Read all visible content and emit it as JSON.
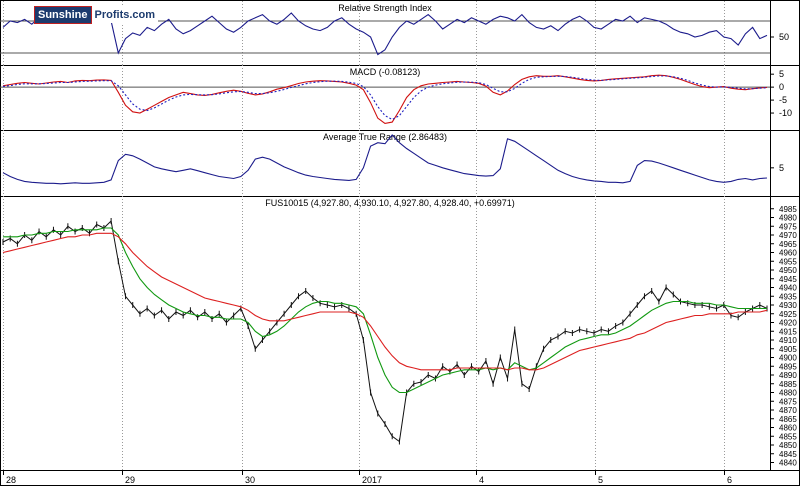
{
  "logo": {
    "left": "Sunshine",
    "right": "Profits.com"
  },
  "chart_data": [
    {
      "type": "line",
      "title": "Relative Strength Index",
      "y_ticks": [
        "50"
      ],
      "ylim": [
        20,
        90
      ],
      "reference_lines": [
        70,
        30
      ],
      "series": [
        {
          "color": "#1c1c8c",
          "values": [
            62,
            70,
            68,
            72,
            66,
            74,
            78,
            70,
            75,
            72,
            80,
            74,
            70,
            76,
            82,
            70,
            30,
            48,
            55,
            52,
            62,
            58,
            66,
            72,
            60,
            54,
            58,
            64,
            70,
            76,
            68,
            60,
            56,
            62,
            70,
            74,
            78,
            70,
            66,
            72,
            80,
            70,
            64,
            60,
            58,
            62,
            70,
            74,
            66,
            60,
            56,
            50,
            28,
            34,
            50,
            62,
            70,
            66,
            72,
            78,
            70,
            60,
            66,
            72,
            68,
            74,
            70,
            66,
            72,
            76,
            74,
            70,
            78,
            68,
            62,
            60,
            64,
            58,
            66,
            72,
            76,
            70,
            62,
            60,
            66,
            72,
            70,
            76,
            68,
            74,
            72,
            70,
            66,
            60,
            56,
            54,
            50,
            52,
            56,
            58,
            50,
            48,
            40,
            54,
            62,
            48,
            52
          ]
        }
      ]
    },
    {
      "type": "line",
      "title": "MACD (-0.08123)",
      "y_ticks": [
        "5",
        "0",
        "-5",
        "-10"
      ],
      "ylim": [
        -15,
        7
      ],
      "series": [
        {
          "color": "#d01010",
          "values": [
            0.5,
            1,
            1.5,
            1.8,
            1.5,
            1.2,
            1.6,
            2,
            2.2,
            1.8,
            2.4,
            2.6,
            2.5,
            2.7,
            2.8,
            2.6,
            -2,
            -7,
            -9.5,
            -10,
            -8.5,
            -7,
            -5.5,
            -4,
            -3,
            -2,
            -2.5,
            -3,
            -3.2,
            -2.8,
            -2.2,
            -1.6,
            -1.2,
            -1.6,
            -2.4,
            -3,
            -2.6,
            -1.8,
            -0.8,
            -0.2,
            0.6,
            1.4,
            2,
            2.3,
            2.5,
            2.4,
            2.2,
            2,
            1.5,
            0.8,
            -1,
            -6,
            -12,
            -14,
            -13.5,
            -9,
            -4,
            -1,
            0.5,
            1.2,
            1.5,
            1.8,
            2,
            2.2,
            2,
            1.8,
            1.5,
            0.4,
            -2,
            -3,
            -1.5,
            1,
            3,
            4,
            4.4,
            4.2,
            4.2,
            4.4,
            4,
            3.5,
            3,
            2.6,
            2.4,
            2.6,
            3,
            3.2,
            3.4,
            3.6,
            3.8,
            4,
            4.4,
            4.6,
            4.4,
            3.8,
            3,
            2,
            1,
            0.2,
            -0.2,
            0,
            0.2,
            -0.4,
            -0.8,
            -1,
            -0.6,
            -0.3,
            -0.1
          ]
        },
        {
          "color": "#2020c0",
          "dashed": true,
          "values": [
            0.3,
            0.6,
            1,
            1.3,
            1.3,
            1.3,
            1.4,
            1.6,
            1.8,
            1.8,
            2,
            2.2,
            2.3,
            2.4,
            2.5,
            2.5,
            0.5,
            -3,
            -6.5,
            -8.5,
            -9,
            -8,
            -6.5,
            -5,
            -3.8,
            -3,
            -2.8,
            -2.9,
            -3,
            -2.9,
            -2.6,
            -2.2,
            -1.8,
            -1.7,
            -2,
            -2.5,
            -2.5,
            -2.2,
            -1.6,
            -0.9,
            -0.1,
            0.6,
            1.3,
            1.8,
            2.1,
            2.3,
            2.3,
            2.2,
            1.9,
            1.4,
            0.2,
            -3,
            -7.5,
            -11,
            -12.5,
            -11,
            -7.5,
            -4,
            -1.5,
            0,
            0.8,
            1.3,
            1.6,
            1.9,
            2,
            1.9,
            1.7,
            1,
            -0.5,
            -1.8,
            -1.8,
            -0.5,
            1.5,
            3,
            3.8,
            4,
            4.1,
            4.2,
            4.1,
            3.8,
            3.4,
            3,
            2.7,
            2.6,
            2.8,
            3,
            3.2,
            3.4,
            3.6,
            3.8,
            4.1,
            4.3,
            4.3,
            4,
            3.4,
            2.6,
            1.6,
            0.8,
            0.2,
            0,
            0.1,
            -0.1,
            -0.4,
            -0.7,
            -0.6,
            -0.4,
            -0.2
          ]
        }
      ]
    },
    {
      "type": "line",
      "title": "Average True Range (2.86483)",
      "y_ticks": [
        "5"
      ],
      "ylim": [
        0,
        12
      ],
      "series": [
        {
          "color": "#1c1c8c",
          "values": [
            4,
            3.2,
            2.6,
            2.2,
            2,
            1.9,
            1.8,
            1.8,
            1.7,
            1.8,
            1.9,
            1.8,
            1.8,
            1.9,
            2,
            2.5,
            6.5,
            7.8,
            7.5,
            6.8,
            6,
            5.2,
            4.8,
            4.5,
            4.2,
            4.5,
            4.8,
            4.4,
            4,
            3.6,
            3.2,
            3,
            2.8,
            3.2,
            4.5,
            6.8,
            7.2,
            6.8,
            6,
            5.2,
            4.6,
            4,
            3.5,
            3.2,
            3,
            2.8,
            2.6,
            2.5,
            2.4,
            2.6,
            5,
            9.5,
            10.2,
            10,
            11.8,
            10.2,
            9,
            8,
            7,
            6,
            5.5,
            5,
            4.6,
            4.2,
            3.8,
            3.6,
            3.4,
            3.3,
            3.4,
            4.8,
            11,
            10.5,
            9.5,
            8.5,
            7.5,
            6.5,
            5.5,
            4.5,
            3.8,
            3.2,
            2.8,
            2.5,
            2.3,
            2.2,
            2,
            2,
            1.9,
            2.2,
            5.5,
            6.5,
            6.4,
            6,
            5.5,
            5,
            4.5,
            4,
            3.5,
            3,
            2.5,
            2.2,
            2,
            2.2,
            2.6,
            2.8,
            2.5,
            2.8,
            2.9
          ]
        }
      ]
    },
    {
      "type": "line",
      "title": "FUS10015 (4,927.80, 4,930.10, 4,927.80, 4,928.40, +0.69971)",
      "ylim": [
        4838,
        4990
      ],
      "y_ticks": [
        "4985",
        "4980",
        "4975",
        "4970",
        "4965",
        "4960",
        "4955",
        "4950",
        "4945",
        "4940",
        "4935",
        "4930",
        "4925",
        "4920",
        "4915",
        "4910",
        "4905",
        "4900",
        "4895",
        "4890",
        "4885",
        "4880",
        "4875",
        "4870",
        "4865",
        "4860",
        "4855",
        "4850",
        "4845",
        "4840"
      ],
      "x_ticks": [
        "28",
        "29",
        "30",
        "2017",
        "4",
        "5",
        "6"
      ],
      "series": [
        {
          "color": "#111111",
          "values": [
            4966,
            4968,
            4965,
            4970,
            4967,
            4972,
            4969,
            4973,
            4970,
            4975,
            4972,
            4974,
            4971,
            4976,
            4974,
            4978,
            4955,
            4935,
            4930,
            4925,
            4928,
            4924,
            4927,
            4922,
            4926,
            4924,
            4927,
            4923,
            4926,
            4922,
            4925,
            4920,
            4924,
            4928,
            4918,
            4905,
            4910,
            4915,
            4920,
            4925,
            4930,
            4935,
            4938,
            4934,
            4931,
            4930,
            4929,
            4930,
            4928,
            4925,
            4910,
            4880,
            4868,
            4862,
            4855,
            4852,
            4880,
            4885,
            4886,
            4890,
            4888,
            4895,
            4892,
            4896,
            4890,
            4895,
            4892,
            4898,
            4885,
            4900,
            4888,
            4916,
            4885,
            4882,
            4895,
            4905,
            4910,
            4912,
            4915,
            4914,
            4916,
            4915,
            4914,
            4916,
            4915,
            4918,
            4920,
            4925,
            4930,
            4935,
            4938,
            4932,
            4940,
            4936,
            4932,
            4931,
            4930,
            4930,
            4929,
            4928,
            4930,
            4924,
            4923,
            4926,
            4928,
            4930,
            4928
          ]
        },
        {
          "color": "#119911",
          "values": [
            4969,
            4969,
            4969,
            4970,
            4970,
            4971,
            4971,
            4972,
            4972,
            4972,
            4973,
            4973,
            4973,
            4973,
            4974,
            4974,
            4970,
            4960,
            4952,
            4945,
            4940,
            4936,
            4933,
            4930,
            4928,
            4926,
            4925,
            4924,
            4924,
            4923,
            4923,
            4922,
            4922,
            4922,
            4920,
            4915,
            4912,
            4913,
            4915,
            4918,
            4922,
            4926,
            4929,
            4931,
            4932,
            4932,
            4931,
            4931,
            4930,
            4929,
            4925,
            4913,
            4900,
            4890,
            4883,
            4880,
            4880,
            4882,
            4884,
            4886,
            4888,
            4890,
            4891,
            4892,
            4893,
            4893,
            4893,
            4894,
            4893,
            4894,
            4893,
            4897,
            4895,
            4893,
            4894,
            4897,
            4900,
            4903,
            4906,
            4908,
            4910,
            4911,
            4912,
            4913,
            4913,
            4914,
            4916,
            4918,
            4921,
            4924,
            4927,
            4929,
            4931,
            4932,
            4932,
            4932,
            4931,
            4931,
            4931,
            4930,
            4930,
            4929,
            4928,
            4928,
            4928,
            4928,
            4928
          ]
        },
        {
          "color": "#dd2020",
          "values": [
            4960,
            4961,
            4962,
            4963,
            4964,
            4965,
            4966,
            4967,
            4968,
            4969,
            4969,
            4970,
            4970,
            4971,
            4971,
            4971,
            4969,
            4965,
            4960,
            4956,
            4952,
            4949,
            4946,
            4944,
            4942,
            4940,
            4938,
            4936,
            4934,
            4933,
            4932,
            4931,
            4930,
            4929,
            4927,
            4924,
            4922,
            4921,
            4921,
            4921,
            4922,
            4923,
            4924,
            4925,
            4926,
            4926,
            4926,
            4926,
            4926,
            4925,
            4923,
            4918,
            4912,
            4906,
            4901,
            4897,
            4895,
            4894,
            4893,
            4893,
            4893,
            4893,
            4893,
            4894,
            4894,
            4894,
            4894,
            4894,
            4894,
            4894,
            4893,
            4894,
            4894,
            4893,
            4893,
            4894,
            4896,
            4898,
            4900,
            4902,
            4904,
            4905,
            4906,
            4907,
            4908,
            4909,
            4910,
            4911,
            4913,
            4914,
            4916,
            4918,
            4920,
            4921,
            4922,
            4923,
            4924,
            4924,
            4925,
            4925,
            4925,
            4925,
            4926,
            4926,
            4926,
            4926,
            4927
          ]
        }
      ]
    }
  ]
}
